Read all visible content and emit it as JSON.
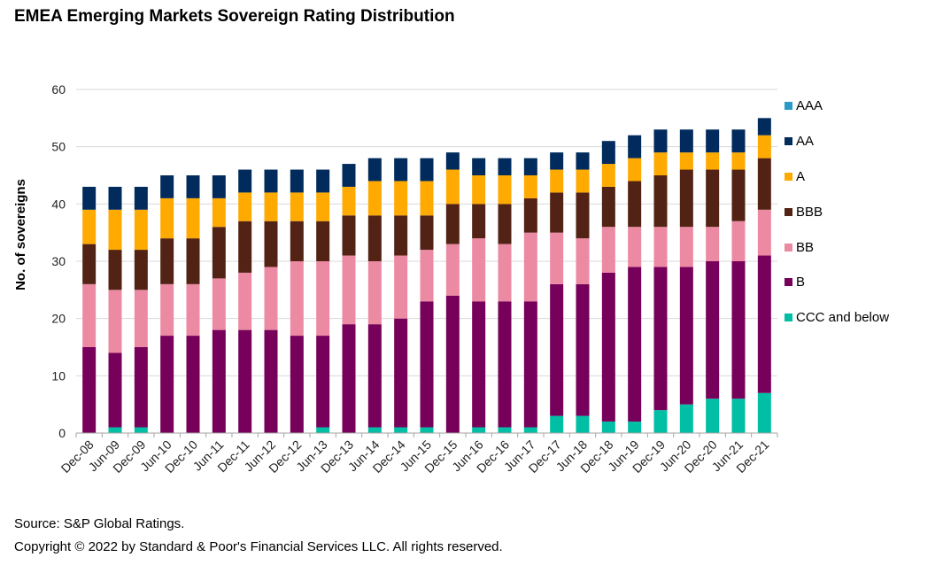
{
  "chart_data": {
    "type": "bar",
    "stacked": true,
    "title": "EMEA Emerging Markets Sovereign Rating Distribution",
    "xlabel": "",
    "ylabel": "No. of sovereigns",
    "ylim": [
      0,
      60
    ],
    "yticks": [
      0,
      10,
      20,
      30,
      40,
      50,
      60
    ],
    "grid": true,
    "legend_position": "right",
    "categories": [
      "Dec-08",
      "Jun-09",
      "Dec-09",
      "Jun-10",
      "Dec-10",
      "Jun-11",
      "Dec-11",
      "Jun-12",
      "Dec-12",
      "Jun-13",
      "Dec-13",
      "Jun-14",
      "Dec-14",
      "Jun-15",
      "Dec-15",
      "Jun-16",
      "Dec-16",
      "Jun-17",
      "Dec-17",
      "Jun-18",
      "Dec-18",
      "Jun-19",
      "Dec-19",
      "Jun-20",
      "Dec-20",
      "Jun-21",
      "Dec-21"
    ],
    "series": [
      {
        "name": "CCC and below",
        "color": "#00BFA5",
        "values": [
          0,
          1,
          1,
          0,
          0,
          0,
          0,
          0,
          0,
          1,
          0,
          1,
          1,
          1,
          0,
          1,
          1,
          1,
          3,
          3,
          2,
          2,
          4,
          5,
          6,
          6,
          7
        ]
      },
      {
        "name": "B",
        "color": "#76005A",
        "values": [
          15,
          13,
          14,
          17,
          17,
          18,
          18,
          18,
          17,
          16,
          19,
          18,
          19,
          22,
          24,
          22,
          22,
          22,
          23,
          23,
          26,
          27,
          25,
          24,
          24,
          24,
          24
        ]
      },
      {
        "name": "BB",
        "color": "#EC8AA3",
        "values": [
          11,
          11,
          10,
          9,
          9,
          9,
          10,
          11,
          13,
          13,
          12,
          11,
          11,
          9,
          9,
          11,
          10,
          12,
          9,
          8,
          8,
          7,
          7,
          7,
          6,
          7,
          8
        ]
      },
      {
        "name": "BBB",
        "color": "#522314",
        "values": [
          7,
          7,
          7,
          8,
          8,
          9,
          9,
          8,
          7,
          7,
          7,
          8,
          7,
          6,
          7,
          6,
          7,
          6,
          7,
          8,
          7,
          8,
          9,
          10,
          10,
          9,
          9
        ]
      },
      {
        "name": "A",
        "color": "#FFAA00",
        "values": [
          6,
          7,
          7,
          7,
          7,
          5,
          5,
          5,
          5,
          5,
          5,
          6,
          6,
          6,
          6,
          5,
          5,
          4,
          4,
          4,
          4,
          4,
          4,
          3,
          3,
          3,
          4
        ]
      },
      {
        "name": "AA",
        "color": "#002B5C",
        "values": [
          4,
          4,
          4,
          4,
          4,
          4,
          4,
          4,
          4,
          4,
          4,
          4,
          4,
          4,
          3,
          3,
          3,
          3,
          3,
          3,
          4,
          4,
          4,
          4,
          4,
          4,
          3
        ]
      },
      {
        "name": "AAA",
        "color": "#2A9BC8",
        "values": [
          0,
          0,
          0,
          0,
          0,
          0,
          0,
          0,
          0,
          0,
          0,
          0,
          0,
          0,
          0,
          0,
          0,
          0,
          0,
          0,
          0,
          0,
          0,
          0,
          0,
          0,
          0
        ]
      }
    ],
    "legend_order": [
      "AAA",
      "AA",
      "A",
      "BBB",
      "BB",
      "B",
      "CCC and below"
    ]
  },
  "legend": [
    {
      "label": "AAA",
      "color": "#2A9BC8"
    },
    {
      "label": "AA",
      "color": "#002B5C"
    },
    {
      "label": "A",
      "color": "#FFAA00"
    },
    {
      "label": "BBB",
      "color": "#522314"
    },
    {
      "label": "BB",
      "color": "#EC8AA3"
    },
    {
      "label": "B",
      "color": "#76005A"
    },
    {
      "label": "CCC and below",
      "color": "#00BFA5"
    }
  ],
  "footer": {
    "source": "Source: S&P Global Ratings.",
    "copyright": "Copyright © 2022 by Standard & Poor's Financial Services LLC. All rights reserved."
  }
}
